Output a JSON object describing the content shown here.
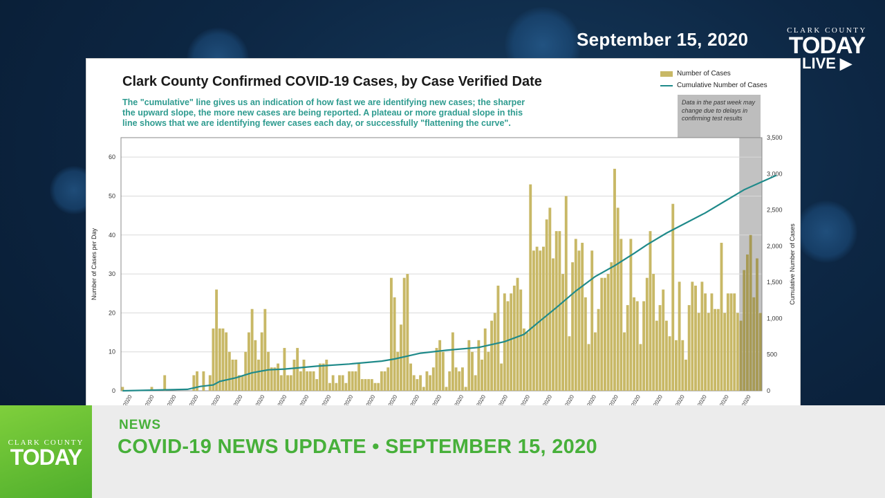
{
  "broadcast": {
    "date": "September 15, 2020",
    "brand_small": "CLARK COUNTY",
    "brand_big": "TODAY",
    "brand_live": "LIVE",
    "section": "NEWS",
    "headline": "COVID-19 NEWS UPDATE • SEPTEMBER 15, 2020"
  },
  "colors": {
    "bar": "#c8b866",
    "line": "#1f8a8a",
    "accent_green": "#47b03a",
    "shade": "#a8a8a8"
  },
  "chart_data": {
    "type": "bar",
    "title": "Clark County Confirmed COVID-19 Cases, by Case Verified Date",
    "explanation": "The \"cumulative\" line gives us an indication of how fast we are identifying new cases; the sharper the upward slope, the more new cases are being reported. A plateau or more gradual slope in this line shows that we are identifying fewer cases each day, or successfully \"flattening the curve\".",
    "note": "Data in the past week may change due to delays in confirming test results",
    "ylabel": "Number of Cases per Day",
    "y2label": "Cumulative Number of Cases",
    "ylim": [
      0,
      65
    ],
    "y_ticks": [
      0,
      10,
      20,
      30,
      40,
      50,
      60
    ],
    "y2lim": [
      0,
      3500
    ],
    "y2_ticks": [
      "0",
      "500",
      "1,000",
      "1,500",
      "2,000",
      "2,500",
      "3,000",
      "3,500"
    ],
    "x_tick_labels": [
      "2020",
      "2020",
      "2020",
      "2020",
      "2020",
      "2020",
      "2020",
      "2020",
      "2020",
      "2020",
      "2020",
      "2020",
      "2020",
      "2020",
      "2020",
      "2020",
      "2020",
      "2020",
      "2020",
      "2020",
      "2020",
      "2020",
      "2020",
      "2020",
      "2020",
      "2020",
      "2020",
      "2020",
      "2020"
    ],
    "series": [
      {
        "name": "Number of Cases",
        "type": "bar",
        "values": [
          1,
          0,
          0,
          0,
          0,
          0,
          0,
          0,
          0,
          1,
          0,
          0,
          0,
          4,
          0,
          0,
          0,
          0,
          0,
          0,
          0,
          0,
          4,
          5,
          0,
          5,
          0,
          4,
          16,
          26,
          16,
          16,
          15,
          10,
          8,
          8,
          4,
          4,
          10,
          15,
          21,
          13,
          8,
          15,
          21,
          10,
          6,
          6,
          7,
          4,
          11,
          4,
          4,
          8,
          11,
          5,
          8,
          5,
          5,
          5,
          3,
          7,
          7,
          8,
          2,
          4,
          2,
          4,
          4,
          2,
          5,
          5,
          5,
          7,
          3,
          3,
          3,
          3,
          2,
          2,
          5,
          5,
          6,
          29,
          24,
          10,
          17,
          29,
          30,
          7,
          4,
          3,
          4,
          1,
          5,
          4,
          6,
          11,
          13,
          10,
          1,
          5,
          15,
          6,
          5,
          6,
          1,
          13,
          10,
          4,
          13,
          8,
          16,
          10,
          18,
          20,
          27,
          7,
          25,
          23,
          25,
          27,
          29,
          26,
          16,
          15,
          53,
          36,
          37,
          36,
          37,
          44,
          47,
          34,
          41,
          41,
          30,
          50,
          14,
          33,
          39,
          36,
          38,
          24,
          12,
          36,
          15,
          21,
          29,
          29,
          30,
          33,
          57,
          47,
          39,
          15,
          22,
          39,
          24,
          23,
          12,
          23,
          29,
          41,
          30,
          18,
          22,
          26,
          18,
          14,
          48,
          13,
          28,
          13,
          8,
          22,
          28,
          27,
          20,
          28,
          25,
          20,
          25,
          21,
          21,
          38,
          20,
          25,
          25,
          25,
          20,
          18,
          31,
          35,
          40,
          24,
          34,
          20
        ],
        "ylim": [
          0,
          65
        ]
      },
      {
        "name": "Cumulative Number of Cases",
        "type": "line",
        "points": [
          [
            0,
            0
          ],
          [
            20,
            20
          ],
          [
            24,
            60
          ],
          [
            28,
            80
          ],
          [
            30,
            130
          ],
          [
            35,
            180
          ],
          [
            40,
            250
          ],
          [
            45,
            290
          ],
          [
            50,
            300
          ],
          [
            60,
            340
          ],
          [
            70,
            370
          ],
          [
            80,
            410
          ],
          [
            84,
            440
          ],
          [
            88,
            480
          ],
          [
            92,
            520
          ],
          [
            100,
            560
          ],
          [
            110,
            600
          ],
          [
            118,
            680
          ],
          [
            124,
            780
          ],
          [
            128,
            930
          ],
          [
            134,
            1150
          ],
          [
            140,
            1380
          ],
          [
            146,
            1580
          ],
          [
            152,
            1730
          ],
          [
            158,
            1900
          ],
          [
            162,
            2020
          ],
          [
            168,
            2180
          ],
          [
            174,
            2320
          ],
          [
            180,
            2460
          ],
          [
            186,
            2620
          ],
          [
            192,
            2780
          ],
          [
            198,
            2900
          ],
          [
            202,
            2980
          ]
        ],
        "y2lim": [
          0,
          3500
        ]
      }
    ],
    "legend": "top-right",
    "shaded_region_last_n_days": 7,
    "grid": true
  }
}
